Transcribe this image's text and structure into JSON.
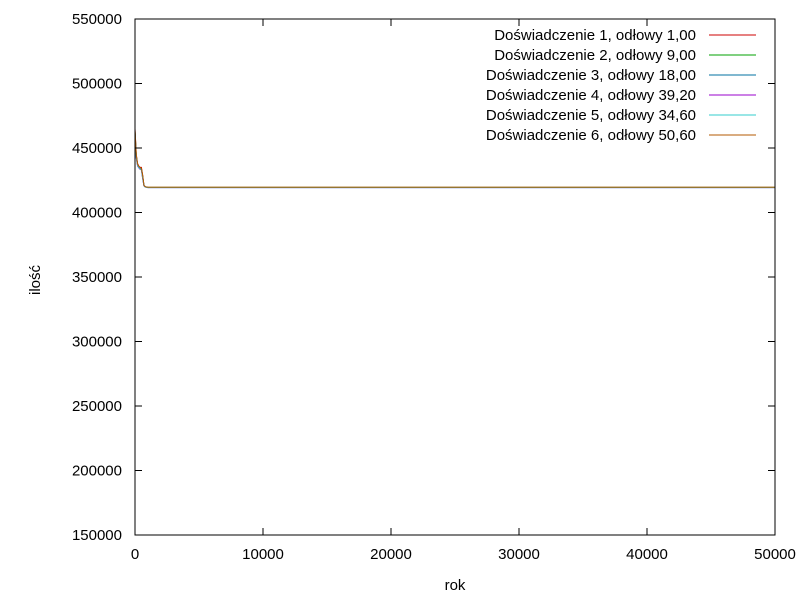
{
  "chart_data": {
    "type": "line",
    "title": "",
    "xlabel": "rok",
    "ylabel": "ilość",
    "xlim": [
      0,
      50000
    ],
    "ylim": [
      150000,
      550000
    ],
    "xticks": [
      0,
      10000,
      20000,
      30000,
      40000,
      50000
    ],
    "yticks": [
      150000,
      200000,
      250000,
      300000,
      350000,
      400000,
      450000,
      500000,
      550000
    ],
    "grid": false,
    "legend_position": "top-right",
    "series": [
      {
        "name": "Doświadczenie 1, odłowy 1,00",
        "color": "#cc0000",
        "x": [
          0,
          100,
          200,
          300,
          400,
          500,
          600,
          700,
          800,
          1000,
          1500,
          2000,
          5000,
          10000,
          20000,
          30000,
          40000,
          50000
        ],
        "y": [
          465000,
          445000,
          438000,
          436000,
          435000,
          435000,
          429000,
          421000,
          420000,
          419500,
          419500,
          419500,
          419500,
          419500,
          419500,
          419500,
          419500,
          419500
        ]
      },
      {
        "name": "Doświadczenie 2, odłowy 9,00",
        "color": "#00a000",
        "x": [
          0,
          100,
          200,
          300,
          400,
          500,
          600,
          700,
          800,
          1000,
          1500,
          2000,
          5000,
          10000,
          20000,
          30000,
          40000,
          50000
        ],
        "y": [
          463000,
          444000,
          437000,
          435500,
          434500,
          434000,
          428000,
          421000,
          420000,
          419500,
          419500,
          419500,
          419500,
          419500,
          419500,
          419500,
          419500,
          419500
        ]
      },
      {
        "name": "Doświadczenie 3, odłowy 18,00",
        "color": "#0070a0",
        "x": [
          0,
          100,
          200,
          300,
          400,
          500,
          600,
          700,
          800,
          1000,
          1500,
          2000,
          5000,
          10000,
          20000,
          30000,
          40000,
          50000
        ],
        "y": [
          462000,
          443000,
          437000,
          435000,
          434000,
          433500,
          427000,
          420800,
          419800,
          419400,
          419400,
          419400,
          419400,
          419400,
          419400,
          419400,
          419400,
          419400
        ]
      },
      {
        "name": "Doświadczenie 4, odłowy 39,20",
        "color": "#9900cc",
        "x": [
          0,
          100,
          200,
          300,
          400,
          500,
          600,
          700,
          800,
          1000,
          1500,
          2000,
          5000,
          10000,
          20000,
          30000,
          40000,
          50000
        ],
        "y": [
          461000,
          442000,
          436000,
          434500,
          433500,
          433000,
          426000,
          420600,
          419700,
          419300,
          419300,
          419300,
          419300,
          419300,
          419300,
          419300,
          419300,
          419300
        ]
      },
      {
        "name": "Doświadczenie 5, odłowy 34,60",
        "color": "#33cccc",
        "x": [
          0,
          100,
          200,
          300,
          400,
          500,
          600,
          700,
          800,
          1000,
          1500,
          2000,
          5000,
          10000,
          20000,
          30000,
          40000,
          50000
        ],
        "y": [
          461500,
          442500,
          436500,
          434800,
          433800,
          433200,
          426500,
          420700,
          419700,
          419300,
          419300,
          419300,
          419300,
          419300,
          419300,
          419300,
          419300,
          419300
        ]
      },
      {
        "name": "Doświadczenie 6, odłowy 50,60",
        "color": "#b35900",
        "x": [
          0,
          100,
          200,
          300,
          400,
          500,
          600,
          700,
          800,
          1000,
          1500,
          2000,
          5000,
          10000,
          20000,
          30000,
          40000,
          50000
        ],
        "y": [
          464000,
          444500,
          437500,
          435800,
          434800,
          434200,
          428500,
          421000,
          420000,
          419600,
          419600,
          419600,
          419600,
          419600,
          419600,
          419600,
          419600,
          419600
        ]
      }
    ]
  }
}
